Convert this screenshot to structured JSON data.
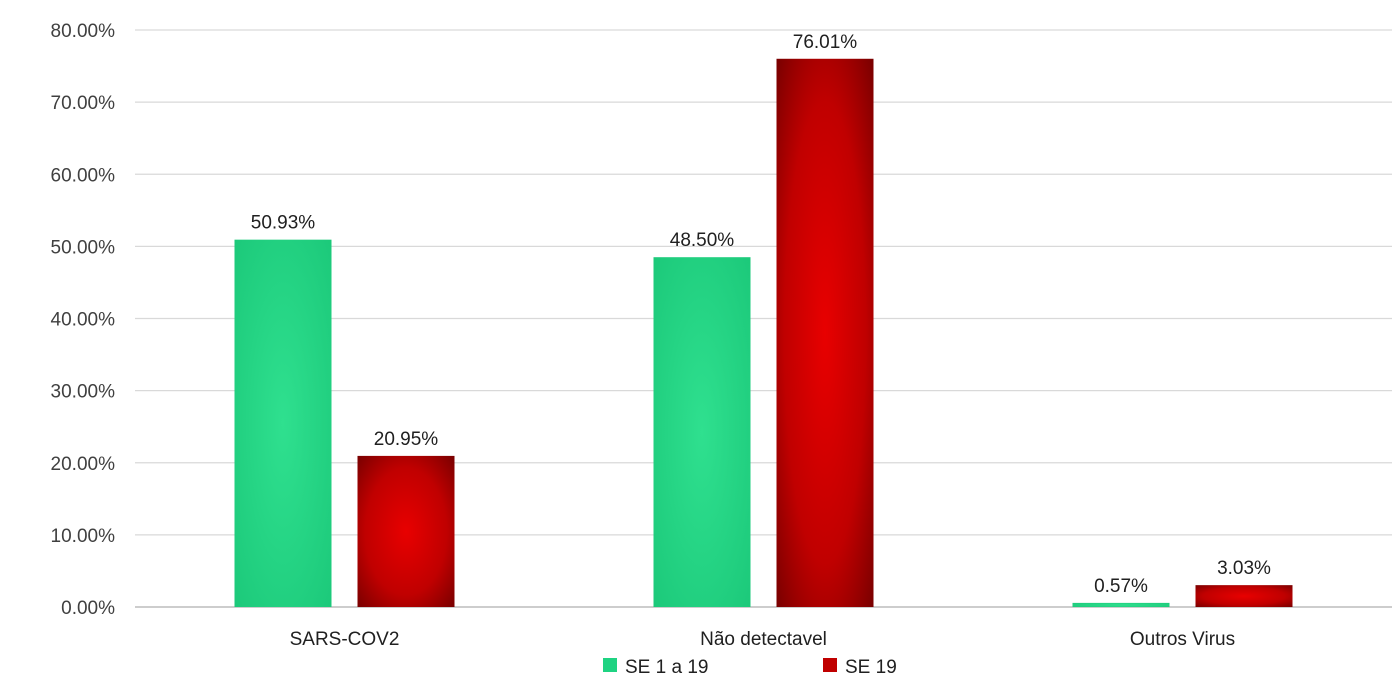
{
  "chart_data": {
    "type": "bar",
    "title": "",
    "xlabel": "",
    "ylabel": "",
    "categories": [
      "SARS-COV2",
      "Não detectavel",
      "Outros Virus"
    ],
    "series": [
      {
        "name": "SE 1 a 19",
        "values": [
          50.93,
          48.5,
          0.57
        ],
        "labels": [
          "50.93%",
          "48.50%",
          "0.57%"
        ],
        "color": "#1fd382"
      },
      {
        "name": "SE 19",
        "values": [
          20.95,
          76.01,
          3.03
        ],
        "labels": [
          "20.95%",
          "76.01%",
          "3.03%"
        ],
        "color": "#c00000"
      }
    ],
    "ylim": [
      0,
      80
    ],
    "yticks": [
      0,
      10,
      20,
      30,
      40,
      50,
      60,
      70,
      80
    ],
    "ytick_labels": [
      "0.00%",
      "10.00%",
      "20.00%",
      "30.00%",
      "40.00%",
      "50.00%",
      "60.00%",
      "70.00%",
      "80.00%"
    ],
    "grid": true,
    "legend_position": "bottom"
  }
}
